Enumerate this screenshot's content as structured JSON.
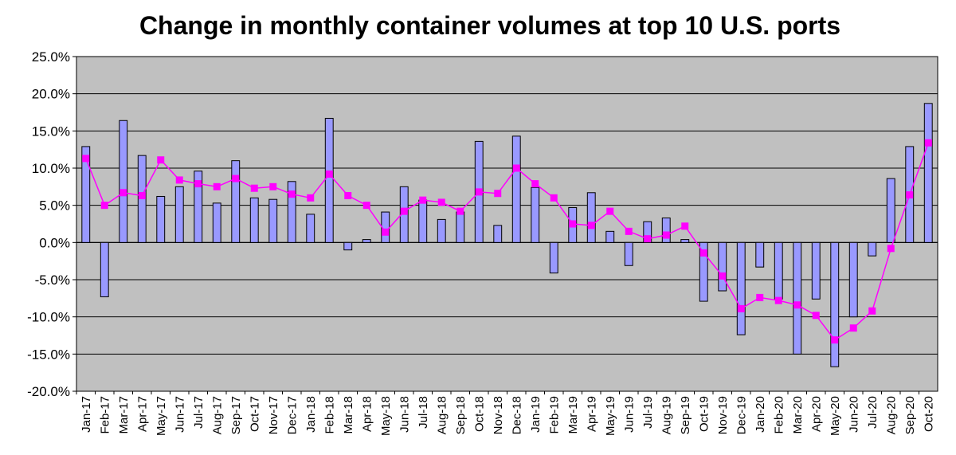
{
  "chart_data": {
    "type": "bar",
    "title": "Change in monthly container volumes at top 10 U.S. ports",
    "xlabel": "",
    "ylabel": "",
    "ylim": [
      -20,
      25
    ],
    "yticks": [
      25,
      20,
      15,
      10,
      5,
      0,
      -5,
      -10,
      -15,
      -20
    ],
    "ytick_labels": [
      "25.0%",
      "20.0%",
      "15.0%",
      "10.0%",
      "5.0%",
      "0.0%",
      "-5.0%",
      "-10.0%",
      "-15.0%",
      "-20.0%"
    ],
    "grid": true,
    "categories": [
      "Jan-17",
      "Feb-17",
      "Mar-17",
      "Apr-17",
      "May-17",
      "Jun-17",
      "Jul-17",
      "Aug-17",
      "Sep-17",
      "Oct-17",
      "Nov-17",
      "Dec-17",
      "Jan-18",
      "Feb-18",
      "Mar-18",
      "Apr-18",
      "May-18",
      "Jun-18",
      "Jul-18",
      "Aug-18",
      "Sep-18",
      "Oct-18",
      "Nov-18",
      "Dec-18",
      "Jan-19",
      "Feb-19",
      "Mar-19",
      "Apr-19",
      "May-19",
      "Jun-19",
      "Jul-19",
      "Aug-19",
      "Sep-19",
      "Oct-19",
      "Nov-19",
      "Dec-19",
      "Jan-20",
      "Feb-20",
      "Mar-20",
      "Apr-20",
      "May-20",
      "Jun-20",
      "Jul-20",
      "Aug-20",
      "Sep-20",
      "Oct-20"
    ],
    "series": [
      {
        "type": "bar",
        "color": "#9999ff",
        "values": [
          12.9,
          -7.3,
          16.4,
          11.7,
          6.2,
          7.5,
          9.6,
          5.3,
          11.0,
          6.0,
          5.8,
          8.2,
          3.8,
          16.7,
          -1.0,
          0.4,
          4.1,
          7.5,
          5.7,
          3.1,
          4.1,
          13.6,
          2.3,
          14.3,
          7.4,
          -4.1,
          4.7,
          6.7,
          1.5,
          -3.1,
          2.8,
          3.3,
          0.4,
          -7.9,
          -6.5,
          -12.4,
          -3.3,
          -7.6,
          -15.0,
          -7.6,
          -16.7,
          -10.0,
          -1.8,
          8.6,
          12.9,
          18.7
        ]
      },
      {
        "type": "line",
        "color": "#ff00ff",
        "values": [
          11.3,
          5.0,
          6.7,
          6.3,
          11.1,
          8.4,
          7.9,
          7.5,
          8.6,
          7.3,
          7.5,
          6.5,
          6.0,
          9.2,
          6.3,
          5.0,
          1.4,
          4.2,
          5.7,
          5.4,
          4.2,
          6.8,
          6.6,
          10.0,
          7.9,
          6.0,
          2.5,
          2.3,
          4.2,
          1.5,
          0.5,
          1.0,
          2.2,
          -1.4,
          -4.5,
          -8.9,
          -7.4,
          -7.8,
          -8.4,
          -9.8,
          -13.1,
          -11.5,
          -9.2,
          -0.8,
          6.4,
          13.4
        ]
      }
    ]
  }
}
